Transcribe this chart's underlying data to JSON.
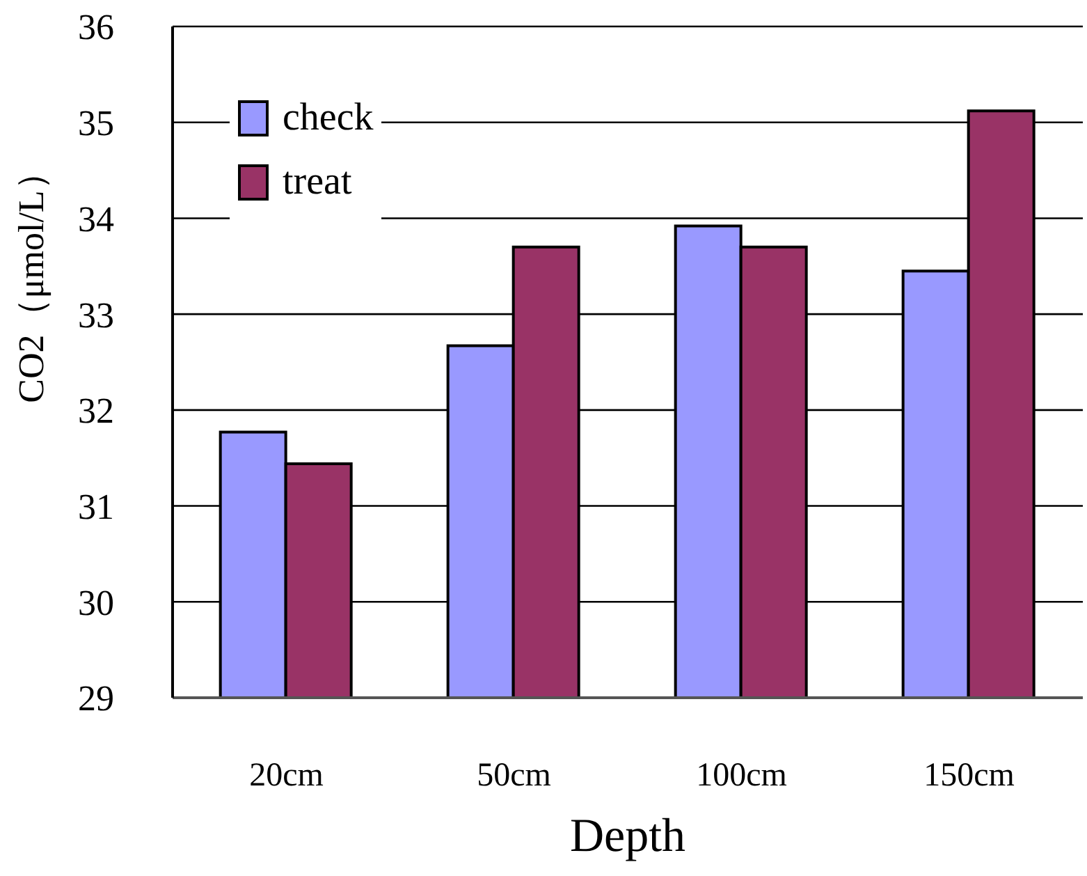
{
  "chart_data": {
    "type": "bar",
    "xlabel": "Depth",
    "ylabel": "CO2（μmol/L）",
    "categories": [
      "20cm",
      "50cm",
      "100cm",
      "150cm"
    ],
    "series": [
      {
        "name": "check",
        "color": "#9999ff",
        "values": [
          31.77,
          32.67,
          33.92,
          33.45
        ]
      },
      {
        "name": "treat",
        "color": "#993366",
        "values": [
          31.44,
          33.7,
          33.7,
          35.12
        ]
      }
    ],
    "ylim": [
      29,
      36
    ],
    "yticks": [
      29,
      30,
      31,
      32,
      33,
      34,
      35,
      36
    ],
    "grid": "y",
    "legend": "top left"
  }
}
